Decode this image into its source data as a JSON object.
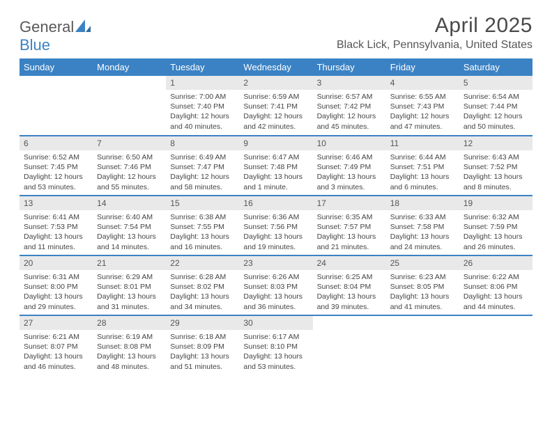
{
  "brand": {
    "part1": "General",
    "part2": "Blue"
  },
  "title": "April 2025",
  "location": "Black Lick, Pennsylvania, United States",
  "colors": {
    "header_bg": "#3b82c4",
    "header_fg": "#ffffff",
    "daynum_bg": "#e9e9e9",
    "rule": "#3b82c4",
    "text": "#444444"
  },
  "typography": {
    "title_fontsize": 30,
    "location_fontsize": 16,
    "dayhead_fontsize": 13,
    "body_fontsize": 10.5
  },
  "day_headers": [
    "Sunday",
    "Monday",
    "Tuesday",
    "Wednesday",
    "Thursday",
    "Friday",
    "Saturday"
  ],
  "grid": {
    "rows": 5,
    "cols": 7,
    "leading_blanks": 2,
    "days_in_month": 30
  },
  "days": [
    {
      "n": 1,
      "sunrise": "7:00 AM",
      "sunset": "7:40 PM",
      "daylight": "12 hours and 40 minutes."
    },
    {
      "n": 2,
      "sunrise": "6:59 AM",
      "sunset": "7:41 PM",
      "daylight": "12 hours and 42 minutes."
    },
    {
      "n": 3,
      "sunrise": "6:57 AM",
      "sunset": "7:42 PM",
      "daylight": "12 hours and 45 minutes."
    },
    {
      "n": 4,
      "sunrise": "6:55 AM",
      "sunset": "7:43 PM",
      "daylight": "12 hours and 47 minutes."
    },
    {
      "n": 5,
      "sunrise": "6:54 AM",
      "sunset": "7:44 PM",
      "daylight": "12 hours and 50 minutes."
    },
    {
      "n": 6,
      "sunrise": "6:52 AM",
      "sunset": "7:45 PM",
      "daylight": "12 hours and 53 minutes."
    },
    {
      "n": 7,
      "sunrise": "6:50 AM",
      "sunset": "7:46 PM",
      "daylight": "12 hours and 55 minutes."
    },
    {
      "n": 8,
      "sunrise": "6:49 AM",
      "sunset": "7:47 PM",
      "daylight": "12 hours and 58 minutes."
    },
    {
      "n": 9,
      "sunrise": "6:47 AM",
      "sunset": "7:48 PM",
      "daylight": "13 hours and 1 minute."
    },
    {
      "n": 10,
      "sunrise": "6:46 AM",
      "sunset": "7:49 PM",
      "daylight": "13 hours and 3 minutes."
    },
    {
      "n": 11,
      "sunrise": "6:44 AM",
      "sunset": "7:51 PM",
      "daylight": "13 hours and 6 minutes."
    },
    {
      "n": 12,
      "sunrise": "6:43 AM",
      "sunset": "7:52 PM",
      "daylight": "13 hours and 8 minutes."
    },
    {
      "n": 13,
      "sunrise": "6:41 AM",
      "sunset": "7:53 PM",
      "daylight": "13 hours and 11 minutes."
    },
    {
      "n": 14,
      "sunrise": "6:40 AM",
      "sunset": "7:54 PM",
      "daylight": "13 hours and 14 minutes."
    },
    {
      "n": 15,
      "sunrise": "6:38 AM",
      "sunset": "7:55 PM",
      "daylight": "13 hours and 16 minutes."
    },
    {
      "n": 16,
      "sunrise": "6:36 AM",
      "sunset": "7:56 PM",
      "daylight": "13 hours and 19 minutes."
    },
    {
      "n": 17,
      "sunrise": "6:35 AM",
      "sunset": "7:57 PM",
      "daylight": "13 hours and 21 minutes."
    },
    {
      "n": 18,
      "sunrise": "6:33 AM",
      "sunset": "7:58 PM",
      "daylight": "13 hours and 24 minutes."
    },
    {
      "n": 19,
      "sunrise": "6:32 AM",
      "sunset": "7:59 PM",
      "daylight": "13 hours and 26 minutes."
    },
    {
      "n": 20,
      "sunrise": "6:31 AM",
      "sunset": "8:00 PM",
      "daylight": "13 hours and 29 minutes."
    },
    {
      "n": 21,
      "sunrise": "6:29 AM",
      "sunset": "8:01 PM",
      "daylight": "13 hours and 31 minutes."
    },
    {
      "n": 22,
      "sunrise": "6:28 AM",
      "sunset": "8:02 PM",
      "daylight": "13 hours and 34 minutes."
    },
    {
      "n": 23,
      "sunrise": "6:26 AM",
      "sunset": "8:03 PM",
      "daylight": "13 hours and 36 minutes."
    },
    {
      "n": 24,
      "sunrise": "6:25 AM",
      "sunset": "8:04 PM",
      "daylight": "13 hours and 39 minutes."
    },
    {
      "n": 25,
      "sunrise": "6:23 AM",
      "sunset": "8:05 PM",
      "daylight": "13 hours and 41 minutes."
    },
    {
      "n": 26,
      "sunrise": "6:22 AM",
      "sunset": "8:06 PM",
      "daylight": "13 hours and 44 minutes."
    },
    {
      "n": 27,
      "sunrise": "6:21 AM",
      "sunset": "8:07 PM",
      "daylight": "13 hours and 46 minutes."
    },
    {
      "n": 28,
      "sunrise": "6:19 AM",
      "sunset": "8:08 PM",
      "daylight": "13 hours and 48 minutes."
    },
    {
      "n": 29,
      "sunrise": "6:18 AM",
      "sunset": "8:09 PM",
      "daylight": "13 hours and 51 minutes."
    },
    {
      "n": 30,
      "sunrise": "6:17 AM",
      "sunset": "8:10 PM",
      "daylight": "13 hours and 53 minutes."
    }
  ],
  "labels": {
    "sunrise": "Sunrise:",
    "sunset": "Sunset:",
    "daylight": "Daylight:"
  }
}
